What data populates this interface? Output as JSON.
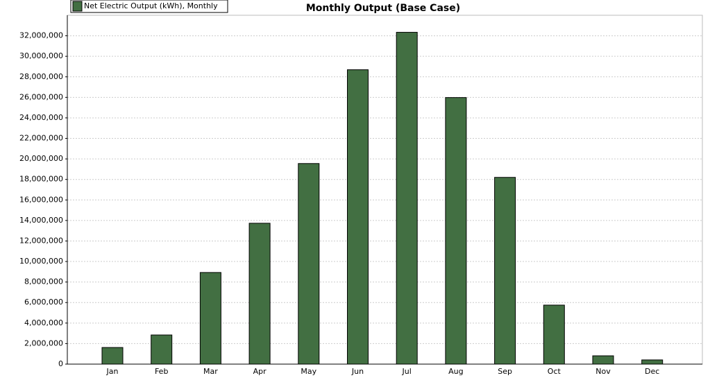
{
  "chart_data": {
    "type": "bar",
    "title": "Monthly Output (Base Case)",
    "series": [
      {
        "name": "Net Electric Output (kWh), Monthly",
        "color": "#426f42",
        "values": [
          1620000,
          2840000,
          8930000,
          13730000,
          19550000,
          28690000,
          32340000,
          25980000,
          18200000,
          5750000,
          810000,
          410000
        ]
      }
    ],
    "categories": [
      "Jan",
      "Feb",
      "Mar",
      "Apr",
      "May",
      "Jun",
      "Jul",
      "Aug",
      "Sep",
      "Oct",
      "Nov",
      "Dec"
    ],
    "ylim": [
      0,
      34000000
    ],
    "yticks": [
      0,
      {
        "value": 2000000,
        "label": "2,000,000"
      },
      {
        "value": 4000000,
        "label": "4,000,000"
      },
      {
        "value": 6000000,
        "label": "6,000,000"
      },
      {
        "value": 8000000,
        "label": "8,000,000"
      },
      {
        "value": 10000000,
        "label": "10,000,000"
      },
      {
        "value": 12000000,
        "label": "12,000,000"
      },
      {
        "value": 14000000,
        "label": "14,000,000"
      },
      {
        "value": 16000000,
        "label": "16,000,000"
      },
      {
        "value": 18000000,
        "label": "18,000,000"
      },
      {
        "value": 20000000,
        "label": "20,000,000"
      },
      {
        "value": 22000000,
        "label": "22,000,000"
      },
      {
        "value": 24000000,
        "label": "24,000,000"
      },
      {
        "value": 26000000,
        "label": "26,000,000"
      },
      {
        "value": 28000000,
        "label": "28,000,000"
      },
      {
        "value": 30000000,
        "label": "30,000,000"
      },
      {
        "value": 32000000,
        "label": "32,000,000"
      }
    ],
    "grid": true,
    "legend": "top-left"
  }
}
